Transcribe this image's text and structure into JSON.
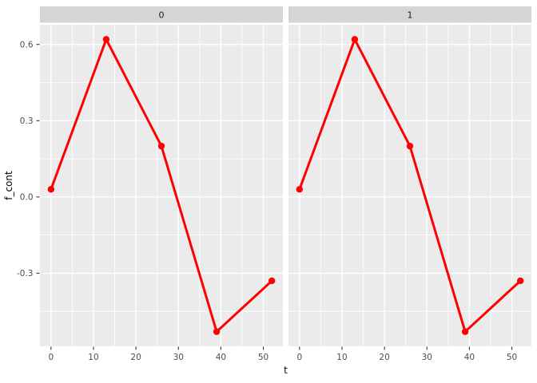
{
  "figure": {
    "background": "#ffffff"
  },
  "chart_data": {
    "type": "line",
    "style": "ggplot-theme-grey-facets",
    "title": "",
    "xlabel": "t",
    "ylabel": "f_cont",
    "legend": "none",
    "grid": true,
    "facets": [
      {
        "label": "0"
      },
      {
        "label": "1"
      }
    ],
    "x": [
      0,
      13,
      26,
      39,
      52
    ],
    "series": [
      {
        "facet": "0",
        "name": "f_cont",
        "values": [
          0.03,
          0.62,
          0.2,
          -0.53,
          -0.33
        ]
      },
      {
        "facet": "1",
        "name": "f_cont",
        "values": [
          0.03,
          0.62,
          0.2,
          -0.53,
          -0.33
        ]
      }
    ],
    "x_ticks": {
      "values": [
        0,
        10,
        20,
        30,
        40,
        50
      ],
      "labels": [
        "0",
        "10",
        "20",
        "30",
        "40",
        "50"
      ]
    },
    "x_minor": [
      5,
      15,
      25,
      35,
      45
    ],
    "y_ticks": {
      "values": [
        0.6,
        0.3,
        0.0,
        -0.3
      ],
      "labels": [
        "0.6",
        "0.3",
        "0.0",
        "-0.3"
      ]
    },
    "y_minor": [
      0.45,
      0.15,
      -0.15,
      -0.45
    ],
    "xlim": [
      -2.6,
      54.6
    ],
    "ylim": [
      -0.5875,
      0.6775
    ],
    "colors": {
      "line": "#ff0000",
      "point": "#ff0000",
      "panel_bg": "#ebebeb",
      "strip_bg": "#d5d5d5",
      "grid_major": "#ffffff",
      "grid_minor": "#ffffff",
      "tick_mark": "#333333",
      "tick_label": "#4d4d4d",
      "axis_title": "#000000",
      "strip_label": "#1a1a1a"
    }
  }
}
